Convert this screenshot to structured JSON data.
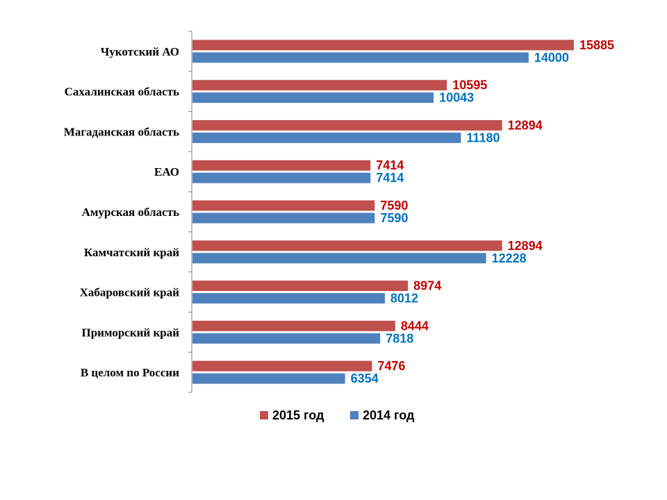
{
  "chart_data": {
    "type": "bar",
    "orientation": "horizontal",
    "categories": [
      "Чукотский АО",
      "Сахалинская область",
      "Магаданская область",
      "ЕАО",
      "Амурская область",
      "Камчатский край",
      "Хабаровский край",
      "Приморский край",
      "В целом по России"
    ],
    "series": [
      {
        "name": "2015 год",
        "color": "#C0504D",
        "label_color": "#C00000",
        "values": [
          15885,
          10595,
          12894,
          7414,
          7590,
          12894,
          8974,
          8444,
          7476
        ]
      },
      {
        "name": "2014 год",
        "color": "#4F81BD",
        "label_color": "#0070C0",
        "values": [
          14000,
          10043,
          11180,
          7414,
          7590,
          12228,
          8012,
          7818,
          6354
        ]
      }
    ],
    "xlim": [
      0,
      16000
    ],
    "grid": false,
    "legend_position": "bottom"
  }
}
